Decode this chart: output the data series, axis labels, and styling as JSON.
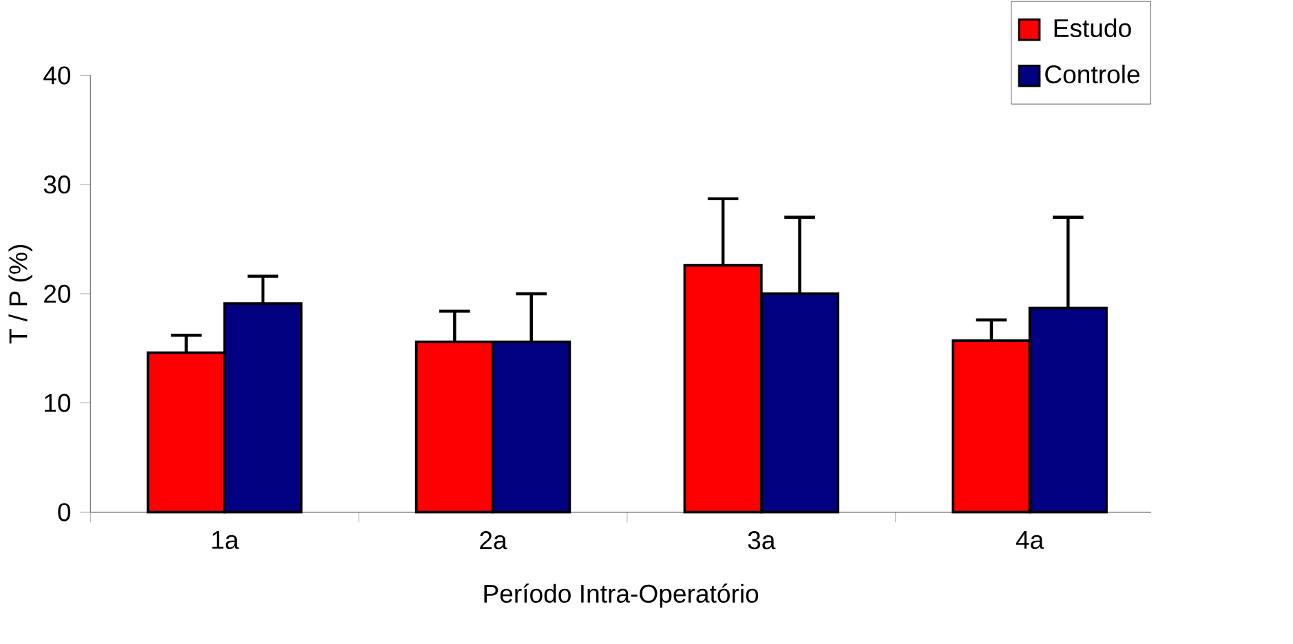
{
  "chart_data": {
    "type": "bar",
    "xlabel": "Período Intra-Operatório",
    "ylabel": "T / P (%)",
    "categories": [
      "1a",
      "2a",
      "3a",
      "4a"
    ],
    "series": [
      {
        "name": "Estudo",
        "color": "#ff0000",
        "values": [
          14.6,
          15.6,
          22.6,
          15.7
        ],
        "errors": [
          [
            14.6,
            16.2
          ],
          [
            15.6,
            18.4
          ],
          [
            22.6,
            28.7
          ],
          [
            15.7,
            17.6
          ]
        ]
      },
      {
        "name": "Controle",
        "color": "#000080",
        "values": [
          19.1,
          15.6,
          20.0,
          18.7
        ],
        "errors": [
          [
            19.1,
            21.6
          ],
          [
            15.6,
            20.0
          ],
          [
            20.0,
            27.0
          ],
          [
            18.7,
            27.0
          ]
        ]
      }
    ],
    "ylim": [
      0,
      40
    ],
    "yticks": [
      0,
      10,
      20,
      30,
      40
    ],
    "grid": false,
    "legend": "top right"
  }
}
